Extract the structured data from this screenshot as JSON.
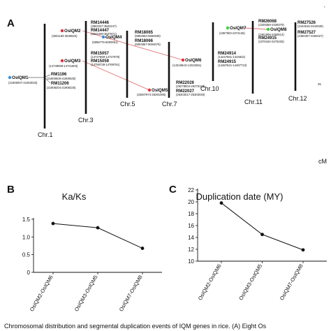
{
  "panel_a": {
    "letter": "A",
    "cm_label": "cM",
    "scale_tick": "25",
    "scale_star": "*",
    "chromosomes": [
      {
        "label": "Chr.1"
      },
      {
        "label": "Chr.3"
      },
      {
        "label": "Chr.5"
      },
      {
        "label": "Chr.7"
      },
      {
        "label": "Chr.10"
      },
      {
        "label": "Chr.11"
      },
      {
        "label": "Chr.12"
      }
    ],
    "genes": [
      {
        "name": "OsIQM1",
        "pos": "(21900007-21903033)",
        "color": "#3b8fd6"
      },
      {
        "name": "OsIQM2",
        "pos": "(3631183-3635525)",
        "color": "#e0303a"
      },
      {
        "name": "OsIQM3",
        "pos": "(14739099-14741803)",
        "color": "#e0303a"
      },
      {
        "name": "OsIQM4",
        "pos": "(5996776-6000061)",
        "color": "#3b8fd6"
      },
      {
        "name": "OsIQM5",
        "pos": "(26287974-26291065)",
        "color": "#e0303a"
      },
      {
        "name": "OsIQM6",
        "pos": "(14319643-14323361)",
        "color": "#e0303a"
      },
      {
        "name": "OsIQM7",
        "pos": "(2367903-2372136)",
        "color": "#3fcf3f"
      },
      {
        "name": "OsIQM8",
        "pos": "(2451806-2455614)",
        "color": "#3fcf3f"
      }
    ],
    "markers": [
      {
        "name": "RM1196",
        "pos": "(21900509-21900530)"
      },
      {
        "name": "RM11206",
        "pos": "(21908204-21908225)"
      },
      {
        "name": "RM14446",
        "pos": "(3602227-3602247)"
      },
      {
        "name": "RM14447",
        "pos": "(3632449-3637871)"
      },
      {
        "name": "RM15057",
        "pos": "(14727859-14727879)"
      },
      {
        "name": "RM15059",
        "pos": "(14759738-14769761)"
      },
      {
        "name": "RM18065",
        "pos": "(5992653-5992938)"
      },
      {
        "name": "RM18066",
        "pos": "(6004657-6004676)"
      },
      {
        "name": "RM22026",
        "pos": "(26278504-26276123)"
      },
      {
        "name": "RM22027",
        "pos": "(26303017-26303040)"
      },
      {
        "name": "RM24914",
        "pos": "(14247551-1424822)"
      },
      {
        "name": "RM24915",
        "pos": "(14487641-14487710)"
      },
      {
        "name": "RM26068",
        "pos": "(2339359-2339379)"
      },
      {
        "name": "RM24915",
        "pos": "(2376150-2376225)"
      },
      {
        "name": "RM27526",
        "pos": "(2444516-2444536)"
      },
      {
        "name": "RM27527",
        "pos": "(2460407-2460427)"
      }
    ],
    "duplication_links": [
      {
        "from": "OsIQM2",
        "to": "OsIQM6"
      },
      {
        "from": "OsIQM3",
        "to": "OsIQM5"
      },
      {
        "from": "OsIQM7",
        "to": "OsIQM8"
      }
    ],
    "link_color": "#e07070"
  },
  "panel_b": {
    "letter": "B",
    "chart_data": {
      "type": "line",
      "title": "Ka/Ks",
      "categories": [
        "OsIQM2-OsIQM6",
        "OsIQM3-OsIQM5",
        "OsIQM7-OsIQM8"
      ],
      "values": [
        1.38,
        1.26,
        0.68
      ],
      "ylim": [
        0,
        1.5
      ],
      "yticks": [
        "0",
        "0.5",
        "1.0",
        "1.5"
      ],
      "xlabel": "",
      "ylabel": ""
    }
  },
  "panel_c": {
    "letter": "C",
    "chart_data": {
      "type": "line",
      "title": "Duplication date (MY)",
      "categories": [
        "OsIQM2-OsIQM6",
        "OsIQM3-OsIQM5",
        "OsIQM7-OsIQM8"
      ],
      "values": [
        19.8,
        14.5,
        11.9
      ],
      "ylim": [
        10,
        22
      ],
      "yticks": [
        "10",
        "12",
        "14",
        "16",
        "18",
        "20",
        "22"
      ],
      "xlabel": "",
      "ylabel": ""
    }
  },
  "caption": "Chromosomal distribution and segmental duplication events of IQM genes in rice. (A) Eight Os"
}
